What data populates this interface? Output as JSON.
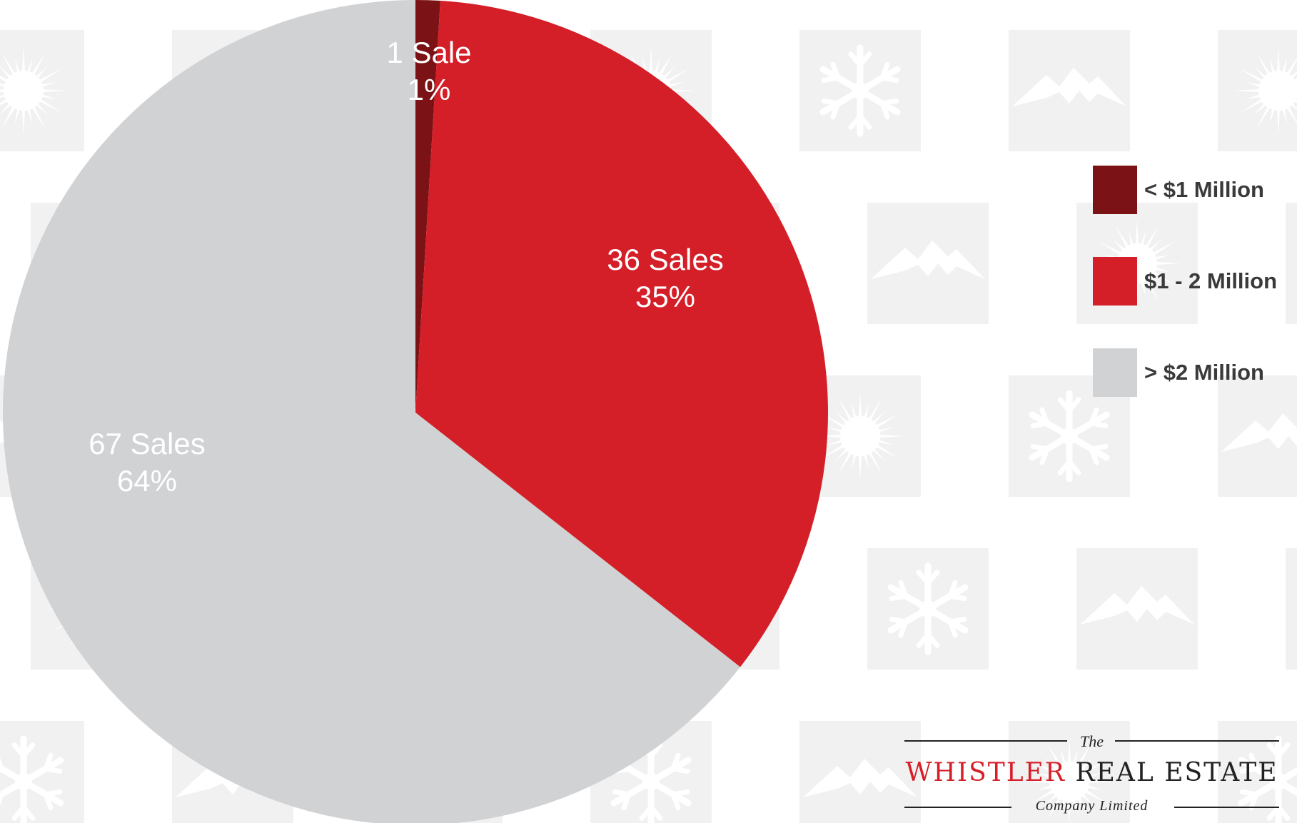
{
  "chart_data": {
    "type": "pie",
    "categories": [
      "< $1 Million",
      "$1 - 2 Million",
      "> $2 Million"
    ],
    "values": [
      1,
      36,
      67
    ],
    "slice_labels": [
      {
        "count": "1 Sale",
        "percent": "1%"
      },
      {
        "count": "36 Sales",
        "percent": "35%"
      },
      {
        "count": "67 Sales",
        "percent": "64%"
      }
    ],
    "colors": [
      "#7b1216",
      "#d41f28",
      "#d1d2d4"
    ],
    "legend_position": "right"
  },
  "legend": {
    "items": [
      {
        "label": "< $1 Million",
        "color": "#7b1216"
      },
      {
        "label": "$1 - 2 Million",
        "color": "#d41f28"
      },
      {
        "label": "> $2 Million",
        "color": "#d1d2d4"
      }
    ]
  },
  "logo": {
    "the": "The",
    "name_red": "WHISTLER",
    "name_dark": "REAL ESTATE",
    "sub": "Company Limited"
  },
  "background": {
    "tile_color": "#f1f1f1",
    "icons": [
      "sunburst-icon",
      "snowflake-icon",
      "mountain-icon"
    ]
  }
}
